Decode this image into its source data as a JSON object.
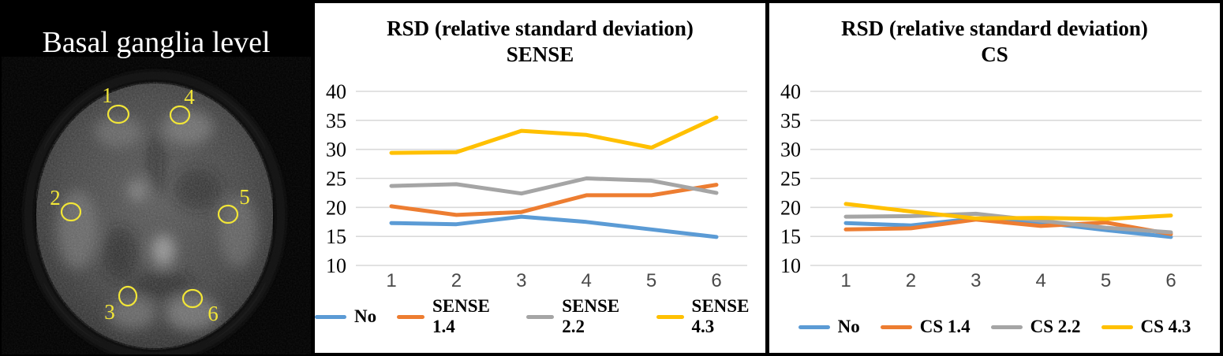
{
  "brain_panel": {
    "title": "Basal ganglia level",
    "roi_color": "#f2e637",
    "rois": [
      {
        "label": "1"
      },
      {
        "label": "2"
      },
      {
        "label": "3"
      },
      {
        "label": "4"
      },
      {
        "label": "5"
      },
      {
        "label": "6"
      }
    ]
  },
  "chart_data": [
    {
      "type": "line",
      "title_line1": "RSD (relative standard deviation)",
      "title_line2": "SENSE",
      "categories": [
        "1",
        "2",
        "3",
        "4",
        "5",
        "6"
      ],
      "yticks": [
        40,
        35,
        30,
        25,
        20,
        15,
        10
      ],
      "ylim": [
        10,
        40
      ],
      "grid": true,
      "legend_position": "bottom",
      "gridline_color": "#d9d9d9",
      "series": [
        {
          "name": "No",
          "color": "#5B9BD5",
          "values": [
            17.3,
            17.1,
            18.4,
            17.5,
            16.2,
            14.9
          ]
        },
        {
          "name": "SENSE 1.4",
          "color": "#ED7D31",
          "values": [
            20.2,
            18.7,
            19.2,
            22.1,
            22.1,
            23.9
          ]
        },
        {
          "name": "SENSE 2.2",
          "color": "#A5A5A5",
          "values": [
            23.7,
            24.0,
            22.4,
            25.0,
            24.6,
            22.5
          ]
        },
        {
          "name": "SENSE 4.3",
          "color": "#FFC000",
          "values": [
            29.4,
            29.5,
            33.2,
            32.5,
            30.3,
            35.5
          ]
        }
      ]
    },
    {
      "type": "line",
      "title_line1": "RSD (relative standard deviation)",
      "title_line2": "CS",
      "categories": [
        "1",
        "2",
        "3",
        "4",
        "5",
        "6"
      ],
      "yticks": [
        40,
        35,
        30,
        25,
        20,
        15,
        10
      ],
      "ylim": [
        10,
        40
      ],
      "grid": true,
      "legend_position": "bottom",
      "gridline_color": "#d9d9d9",
      "series": [
        {
          "name": "No",
          "color": "#5B9BD5",
          "values": [
            17.3,
            16.9,
            18.1,
            17.4,
            16.1,
            14.9
          ]
        },
        {
          "name": "CS 1.4",
          "color": "#ED7D31",
          "values": [
            16.2,
            16.4,
            17.9,
            16.8,
            17.4,
            15.4
          ]
        },
        {
          "name": "CS 2.2",
          "color": "#A5A5A5",
          "values": [
            18.4,
            18.5,
            18.9,
            17.7,
            16.5,
            15.7
          ]
        },
        {
          "name": "CS 4.3",
          "color": "#FFC000",
          "values": [
            20.6,
            19.3,
            18.1,
            18.2,
            18.0,
            18.6
          ]
        }
      ]
    }
  ]
}
